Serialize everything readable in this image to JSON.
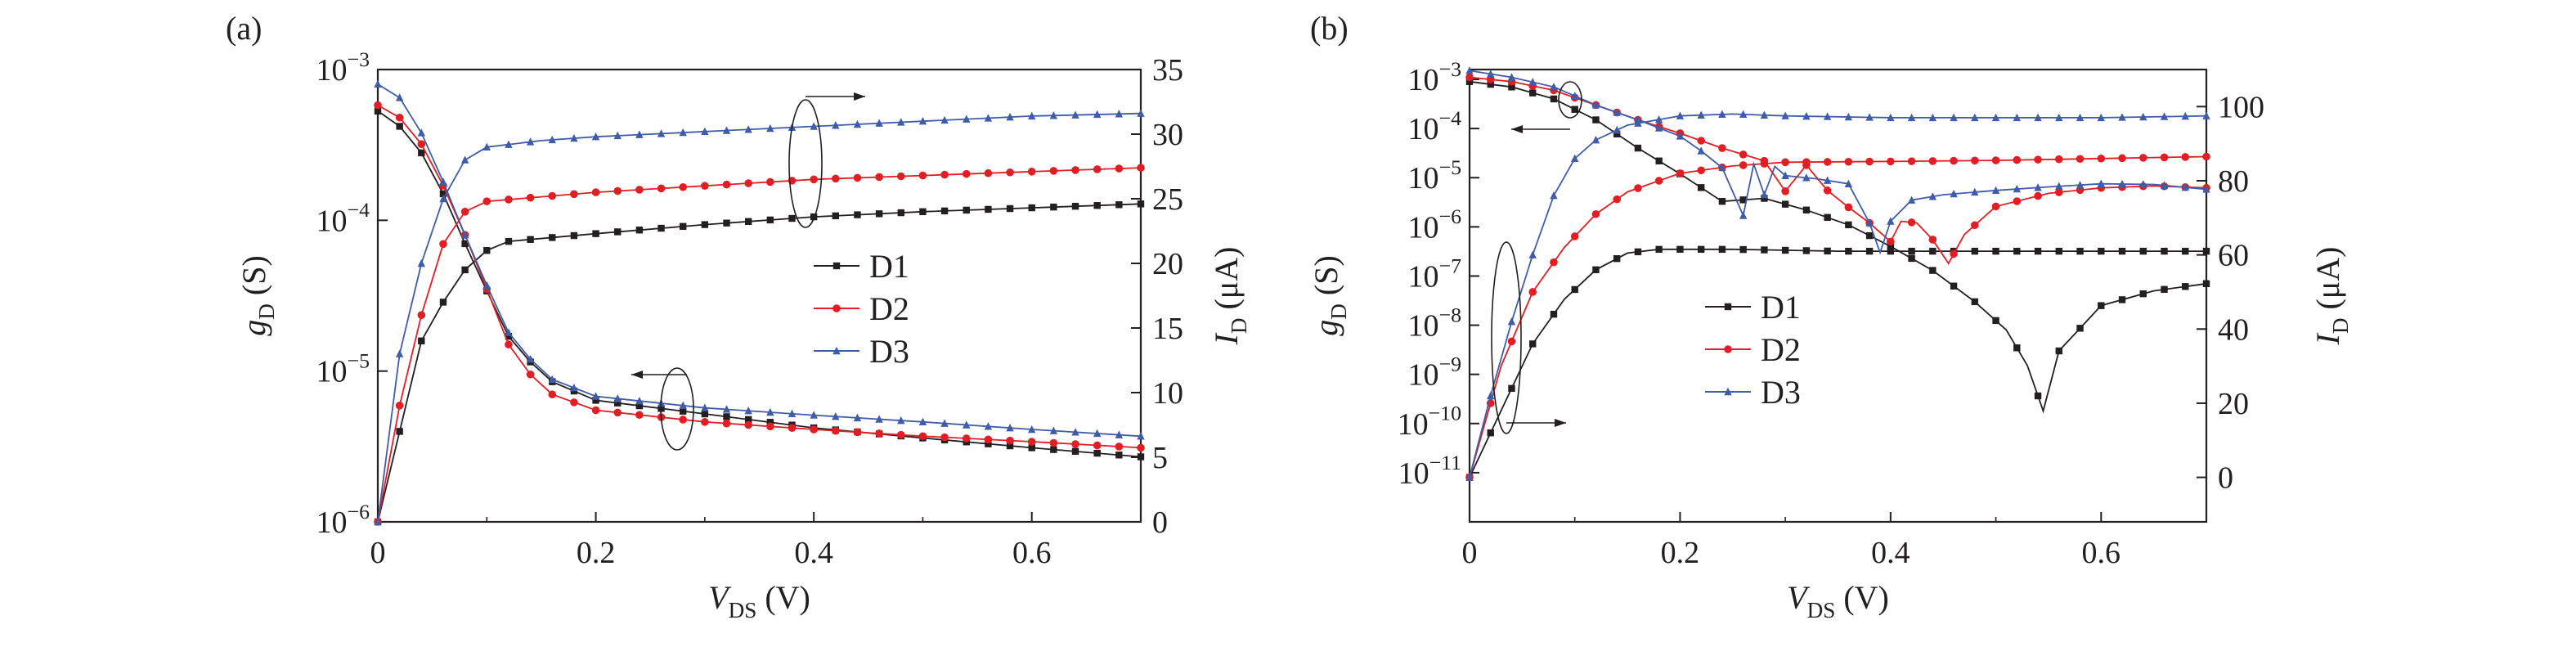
{
  "chart_data": [
    {
      "panel_label": "(a)",
      "type": "line",
      "xlabel": {
        "main": "V",
        "sub": "DS",
        "unit": " (V)"
      },
      "ylabel_left": {
        "main": "g",
        "sub": "D",
        "unit": " (S)"
      },
      "ylabel_right": {
        "main": "I",
        "sub": "D",
        "unit": " (μA)"
      },
      "xlim": [
        0,
        0.7
      ],
      "x_ticks": [
        "0",
        "0.2",
        "0.4",
        "0.6"
      ],
      "x_tick_values": [
        0,
        0.2,
        0.4,
        0.6
      ],
      "y_left_scale": "log",
      "y_left_exp_range": [
        -6,
        -3
      ],
      "y_left_ticks": [
        {
          "base": "10",
          "exp": "−6"
        },
        {
          "base": "10",
          "exp": "−5"
        },
        {
          "base": "10",
          "exp": "−4"
        },
        {
          "base": "10",
          "exp": "−3"
        }
      ],
      "y_right_scale": "linear",
      "y_right_lim": [
        0,
        35
      ],
      "y_right_ticks": [
        "0",
        "5",
        "10",
        "15",
        "20",
        "25",
        "30",
        "35"
      ],
      "legend": {
        "placement": "center-right",
        "entries": [
          "D1",
          "D2",
          "D3"
        ]
      },
      "series": [
        {
          "name": "D1",
          "color": "#231f20",
          "marker": "square",
          "gD_points": [
            [
              0,
              0.00053
            ],
            [
              0.02,
              0.00042
            ],
            [
              0.04,
              0.00028
            ],
            [
              0.06,
              0.00015
            ],
            [
              0.08,
              7e-05
            ],
            [
              0.1,
              3.4e-05
            ],
            [
              0.12,
              1.7e-05
            ],
            [
              0.14,
              1.15e-05
            ],
            [
              0.16,
              8.5e-06
            ],
            [
              0.2,
              6.4e-06
            ],
            [
              0.3,
              5.2e-06
            ],
            [
              0.4,
              4.2e-06
            ],
            [
              0.5,
              3.6e-06
            ],
            [
              0.6,
              3.1e-06
            ],
            [
              0.7,
              2.7e-06
            ]
          ],
          "ID_points": [
            [
              0,
              0
            ],
            [
              0.02,
              7
            ],
            [
              0.04,
              14
            ],
            [
              0.06,
              17
            ],
            [
              0.08,
              19.5
            ],
            [
              0.1,
              21
            ],
            [
              0.12,
              21.7
            ],
            [
              0.2,
              22.3
            ],
            [
              0.3,
              23
            ],
            [
              0.4,
              23.6
            ],
            [
              0.5,
              24
            ],
            [
              0.6,
              24.3
            ],
            [
              0.7,
              24.6
            ]
          ]
        },
        {
          "name": "D2",
          "color": "#e21d23",
          "marker": "circle",
          "gD_points": [
            [
              0,
              0.00058
            ],
            [
              0.02,
              0.00048
            ],
            [
              0.04,
              0.00032
            ],
            [
              0.06,
              0.00017
            ],
            [
              0.08,
              8e-05
            ],
            [
              0.1,
              3.5e-05
            ],
            [
              0.12,
              1.5e-05
            ],
            [
              0.14,
              9.5e-06
            ],
            [
              0.16,
              7e-06
            ],
            [
              0.2,
              5.5e-06
            ],
            [
              0.3,
              4.6e-06
            ],
            [
              0.4,
              4.1e-06
            ],
            [
              0.5,
              3.7e-06
            ],
            [
              0.6,
              3.4e-06
            ],
            [
              0.7,
              3.1e-06
            ]
          ],
          "ID_points": [
            [
              0,
              0
            ],
            [
              0.02,
              9
            ],
            [
              0.04,
              16
            ],
            [
              0.06,
              21.5
            ],
            [
              0.08,
              24
            ],
            [
              0.1,
              24.8
            ],
            [
              0.2,
              25.5
            ],
            [
              0.3,
              26
            ],
            [
              0.4,
              26.5
            ],
            [
              0.5,
              26.8
            ],
            [
              0.6,
              27.1
            ],
            [
              0.7,
              27.4
            ]
          ]
        },
        {
          "name": "D3",
          "color": "#3e5ca8",
          "marker": "triangle",
          "gD_points": [
            [
              0,
              0.0008
            ],
            [
              0.02,
              0.00065
            ],
            [
              0.04,
              0.00038
            ],
            [
              0.06,
              0.00018
            ],
            [
              0.08,
              8e-05
            ],
            [
              0.1,
              3.7e-05
            ],
            [
              0.12,
              1.8e-05
            ],
            [
              0.14,
              1.2e-05
            ],
            [
              0.16,
              8.8e-06
            ],
            [
              0.2,
              6.8e-06
            ],
            [
              0.3,
              5.7e-06
            ],
            [
              0.4,
              5.1e-06
            ],
            [
              0.5,
              4.6e-06
            ],
            [
              0.6,
              4.1e-06
            ],
            [
              0.7,
              3.7e-06
            ]
          ],
          "ID_points": [
            [
              0,
              0
            ],
            [
              0.02,
              13
            ],
            [
              0.04,
              20
            ],
            [
              0.06,
              25
            ],
            [
              0.08,
              28
            ],
            [
              0.1,
              29
            ],
            [
              0.15,
              29.5
            ],
            [
              0.2,
              29.8
            ],
            [
              0.3,
              30.2
            ],
            [
              0.4,
              30.6
            ],
            [
              0.5,
              31
            ],
            [
              0.6,
              31.4
            ],
            [
              0.7,
              31.6
            ]
          ]
        }
      ]
    },
    {
      "panel_label": "(b)",
      "type": "line",
      "xlabel": {
        "main": "V",
        "sub": "DS",
        "unit": " (V)"
      },
      "ylabel_left": {
        "main": "g",
        "sub": "D",
        "unit": " (S)"
      },
      "ylabel_right": {
        "main": "I",
        "sub": "D",
        "unit": " (μA)"
      },
      "xlim": [
        0,
        0.7
      ],
      "x_ticks": [
        "0",
        "0.2",
        "0.4",
        "0.6"
      ],
      "x_tick_values": [
        0,
        0.2,
        0.4,
        0.6
      ],
      "y_left_scale": "log",
      "y_left_exp_range": [
        -12,
        -2.8
      ],
      "y_left_ticks": [
        {
          "base": "10",
          "exp": "−11"
        },
        {
          "base": "10",
          "exp": "−10"
        },
        {
          "base": "10",
          "exp": "−9"
        },
        {
          "base": "10",
          "exp": "−8"
        },
        {
          "base": "10",
          "exp": "−7"
        },
        {
          "base": "10",
          "exp": "−6"
        },
        {
          "base": "10",
          "exp": "−5"
        },
        {
          "base": "10",
          "exp": "−4"
        },
        {
          "base": "10",
          "exp": "−3"
        }
      ],
      "y_right_scale": "linear",
      "y_right_lim": [
        -12,
        110
      ],
      "y_right_ticks": [
        "0",
        "20",
        "40",
        "60",
        "80",
        "100"
      ],
      "legend": {
        "placement": "center",
        "entries": [
          "D1",
          "D2",
          "D3"
        ]
      },
      "series": [
        {
          "name": "D1",
          "color": "#231f20",
          "marker": "square",
          "gD_points": [
            [
              0,
              0.0009
            ],
            [
              0.04,
              0.0007
            ],
            [
              0.08,
              0.0004
            ],
            [
              0.12,
              0.00015
            ],
            [
              0.16,
              4e-05
            ],
            [
              0.2,
              1.2e-05
            ],
            [
              0.24,
              3.3e-06
            ],
            [
              0.28,
              3.8e-06
            ],
            [
              0.32,
              2.2e-06
            ],
            [
              0.36,
              1.1e-06
            ],
            [
              0.4,
              4e-07
            ],
            [
              0.44,
              1.3e-07
            ],
            [
              0.48,
              3e-08
            ],
            [
              0.51,
              8e-09
            ],
            [
              0.53,
              1.5e-09
            ],
            [
              0.545,
              1.8e-10
            ],
            [
              0.56,
              3e-09
            ],
            [
              0.6,
              2.5e-08
            ],
            [
              0.65,
              5e-08
            ],
            [
              0.7,
              7e-08
            ]
          ],
          "ID_points": [
            [
              0,
              0
            ],
            [
              0.03,
              18
            ],
            [
              0.06,
              36
            ],
            [
              0.09,
              48
            ],
            [
              0.12,
              56
            ],
            [
              0.15,
              60.5
            ],
            [
              0.18,
              61.5
            ],
            [
              0.25,
              61.5
            ],
            [
              0.35,
              61
            ],
            [
              0.45,
              61
            ],
            [
              0.55,
              61
            ],
            [
              0.65,
              61
            ],
            [
              0.7,
              61
            ]
          ]
        },
        {
          "name": "D2",
          "color": "#e21d23",
          "marker": "circle",
          "gD_points": [
            [
              0,
              0.0011
            ],
            [
              0.04,
              0.0009
            ],
            [
              0.08,
              0.0006
            ],
            [
              0.12,
              0.0003
            ],
            [
              0.16,
              0.00015
            ],
            [
              0.2,
              8e-05
            ],
            [
              0.24,
              4e-05
            ],
            [
              0.28,
              2.2e-05
            ],
            [
              0.3,
              5.3e-06
            ],
            [
              0.32,
              1.8e-05
            ],
            [
              0.34,
              5.5e-06
            ],
            [
              0.36,
              2.5e-06
            ],
            [
              0.38,
              1.2e-06
            ],
            [
              0.4,
              5e-07
            ],
            [
              0.41,
              1.3e-06
            ],
            [
              0.425,
              1.2e-06
            ],
            [
              0.44,
              5.5e-07
            ],
            [
              0.455,
              1.8e-07
            ],
            [
              0.47,
              7e-07
            ],
            [
              0.5,
              2.6e-06
            ],
            [
              0.55,
              4.8e-06
            ],
            [
              0.6,
              6.2e-06
            ],
            [
              0.65,
              6.8e-06
            ],
            [
              0.7,
              6.2e-06
            ]
          ],
          "ID_points": [
            [
              0,
              0
            ],
            [
              0.03,
              30
            ],
            [
              0.06,
              50
            ],
            [
              0.09,
              62
            ],
            [
              0.12,
              71
            ],
            [
              0.15,
              77
            ],
            [
              0.2,
              82
            ],
            [
              0.25,
              84
            ],
            [
              0.3,
              85
            ],
            [
              0.4,
              85.2
            ],
            [
              0.5,
              85.5
            ],
            [
              0.6,
              86
            ],
            [
              0.7,
              86.5
            ]
          ]
        },
        {
          "name": "D3",
          "color": "#3e5ca8",
          "marker": "triangle",
          "gD_points": [
            [
              0,
              0.0015
            ],
            [
              0.04,
              0.0011
            ],
            [
              0.08,
              0.0007
            ],
            [
              0.12,
              0.0003
            ],
            [
              0.16,
              0.00015
            ],
            [
              0.2,
              7e-05
            ],
            [
              0.22,
              3.5e-05
            ],
            [
              0.24,
              1.6e-05
            ],
            [
              0.26,
              1.7e-06
            ],
            [
              0.27,
              1.9e-05
            ],
            [
              0.28,
              4.5e-06
            ],
            [
              0.29,
              1.7e-05
            ],
            [
              0.3,
              1.1e-05
            ],
            [
              0.33,
              9.5e-06
            ],
            [
              0.36,
              7.5e-06
            ],
            [
              0.38,
              1.2e-06
            ],
            [
              0.39,
              3e-07
            ],
            [
              0.4,
              1.3e-06
            ],
            [
              0.42,
              3.5e-06
            ],
            [
              0.45,
              4.5e-06
            ],
            [
              0.5,
              5.5e-06
            ],
            [
              0.55,
              6.5e-06
            ],
            [
              0.6,
              7.5e-06
            ],
            [
              0.65,
              7.3e-06
            ],
            [
              0.7,
              5.8e-06
            ]
          ],
          "ID_points": [
            [
              0,
              0
            ],
            [
              0.02,
              22
            ],
            [
              0.04,
              42
            ],
            [
              0.06,
              60
            ],
            [
              0.08,
              76
            ],
            [
              0.1,
              86
            ],
            [
              0.12,
              91
            ],
            [
              0.15,
              95
            ],
            [
              0.2,
              97.5
            ],
            [
              0.25,
              98
            ],
            [
              0.3,
              97.5
            ],
            [
              0.4,
              97
            ],
            [
              0.5,
              97
            ],
            [
              0.6,
              97
            ],
            [
              0.7,
              97.5
            ]
          ]
        }
      ]
    }
  ]
}
